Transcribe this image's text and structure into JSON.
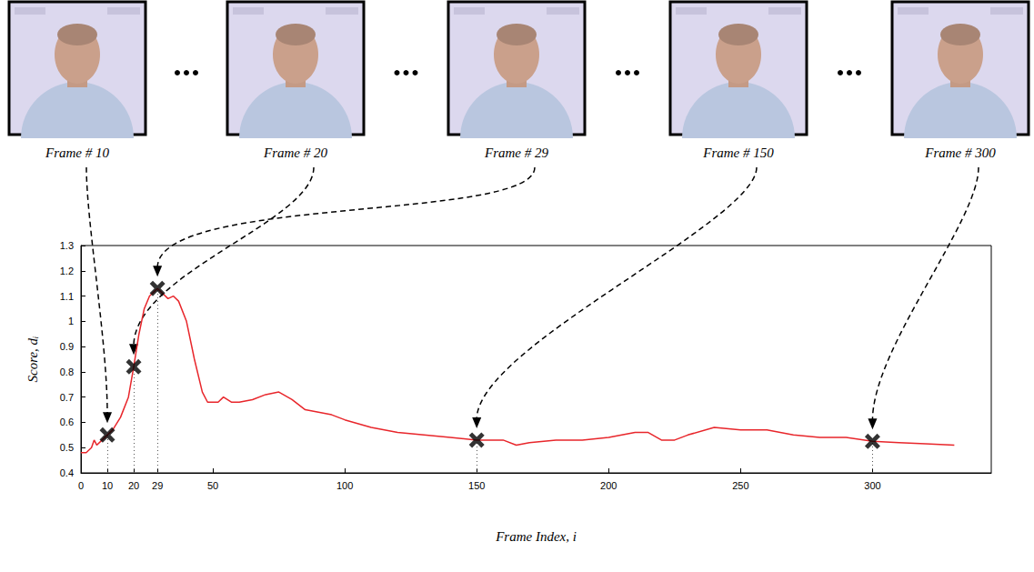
{
  "chart_data": {
    "type": "line",
    "xlabel": "Frame Index, i",
    "ylabel": "Score, dᵢ",
    "x": [
      0,
      2,
      4,
      5,
      6,
      8,
      10,
      12,
      15,
      18,
      20,
      22,
      24,
      26,
      29,
      31,
      33,
      35,
      37,
      40,
      43,
      46,
      48,
      52,
      54,
      57,
      60,
      65,
      70,
      75,
      80,
      85,
      90,
      95,
      100,
      110,
      120,
      130,
      140,
      150,
      160,
      165,
      170,
      180,
      190,
      200,
      210,
      215,
      220,
      225,
      230,
      240,
      250,
      260,
      270,
      280,
      290,
      300,
      310,
      320,
      331
    ],
    "values": [
      0.48,
      0.48,
      0.5,
      0.53,
      0.51,
      0.53,
      0.55,
      0.57,
      0.62,
      0.7,
      0.82,
      0.95,
      1.05,
      1.1,
      1.13,
      1.11,
      1.09,
      1.1,
      1.08,
      1.0,
      0.85,
      0.72,
      0.68,
      0.68,
      0.7,
      0.68,
      0.68,
      0.69,
      0.71,
      0.72,
      0.69,
      0.65,
      0.64,
      0.63,
      0.61,
      0.58,
      0.56,
      0.55,
      0.54,
      0.53,
      0.53,
      0.51,
      0.52,
      0.53,
      0.53,
      0.54,
      0.56,
      0.56,
      0.53,
      0.53,
      0.55,
      0.58,
      0.57,
      0.57,
      0.55,
      0.54,
      0.54,
      0.525,
      0.52,
      0.515,
      0.51
    ],
    "color": "#e8262b",
    "xlim": [
      0,
      345
    ],
    "xticks": [
      0,
      10,
      20,
      29,
      50,
      100,
      150,
      200,
      250,
      300
    ],
    "ylim": [
      0.4,
      1.3
    ],
    "yticks": [
      0.4,
      0.5,
      0.6,
      0.7,
      0.8,
      0.9,
      1,
      1.1,
      1.2,
      1.3
    ],
    "grid": false,
    "marker": "x",
    "frames": [
      {
        "label": "Frame # 10",
        "x": 10,
        "y": 0.55
      },
      {
        "label": "Frame # 20",
        "x": 20,
        "y": 0.82
      },
      {
        "label": "Frame # 29",
        "x": 29,
        "y": 1.13
      },
      {
        "label": "Frame # 150",
        "x": 150,
        "y": 0.53
      },
      {
        "label": "Frame # 300",
        "x": 300,
        "y": 0.525
      }
    ]
  }
}
